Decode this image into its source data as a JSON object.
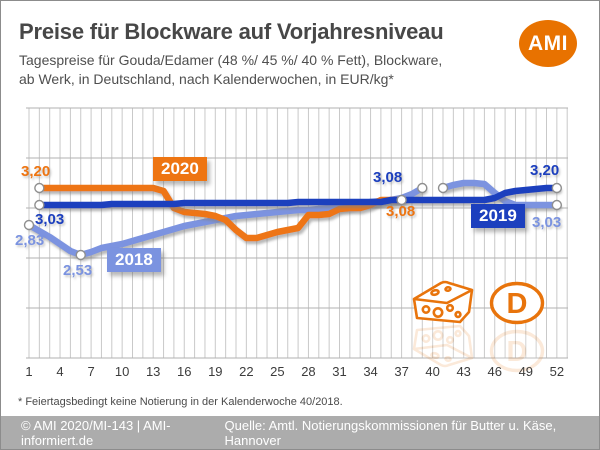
{
  "header": {
    "title": "Preise für Blockware auf Vorjahresniveau",
    "subtitle_line1": "Tagespreise für Gouda/Edamer (48 %/ 45 %/ 40 % Fett), Blockware,",
    "subtitle_line2": "ab Werk, in Deutschland, nach Kalenderwochen, in EUR/kg*",
    "logo_text": "AMI"
  },
  "colors": {
    "orange_2020": "#ee7512",
    "darkblue_2019": "#1c3fbe",
    "lightblue_2018": "#7b93e0",
    "logo_orange": "#e87200",
    "footer_bg": "#acacac"
  },
  "chart_data": {
    "type": "line",
    "title": "Preise für Blockware auf Vorjahresniveau",
    "xlabel": "Kalenderwochen",
    "ylabel": "EUR/kg",
    "x_ticks": [
      1,
      4,
      7,
      10,
      13,
      16,
      19,
      22,
      25,
      28,
      31,
      34,
      37,
      40,
      43,
      46,
      49,
      52
    ],
    "x_range": [
      1,
      52
    ],
    "y_range": [
      1.5,
      4.0
    ],
    "y_gridline_step": 0.5,
    "y_axis_labels_shown": false,
    "grid": {
      "vline_color": "#c9c9c9",
      "hline_color": "#b2b2b2"
    },
    "series": [
      {
        "name": "2018",
        "color": "#7b93e0",
        "values": [
          2.83,
          2.77,
          2.71,
          2.64,
          2.57,
          2.53,
          2.56,
          2.6,
          2.62,
          2.64,
          2.67,
          2.7,
          2.73,
          2.76,
          2.79,
          2.82,
          2.84,
          2.86,
          2.88,
          2.9,
          2.92,
          2.93,
          2.94,
          2.95,
          2.96,
          2.97,
          2.98,
          2.98,
          2.99,
          3.0,
          3.01,
          3.02,
          3.04,
          3.06,
          3.07,
          3.08,
          3.1,
          3.14,
          3.2,
          null,
          3.2,
          3.23,
          3.25,
          3.25,
          3.24,
          3.15,
          3.07,
          3.03,
          3.03,
          3.03,
          3.03,
          3.03
        ]
      },
      {
        "name": "2020",
        "color": "#ee7512",
        "values": [
          null,
          3.2,
          3.2,
          3.2,
          3.2,
          3.2,
          3.2,
          3.2,
          3.2,
          3.2,
          3.2,
          3.2,
          3.2,
          3.17,
          3.0,
          2.96,
          2.95,
          2.94,
          2.92,
          2.88,
          2.78,
          2.7,
          2.7,
          2.73,
          2.76,
          2.78,
          2.8,
          2.93,
          2.93,
          2.94,
          2.99,
          3.0,
          3.0,
          3.03,
          3.08,
          3.08,
          3.08,
          null,
          null,
          null,
          null,
          null,
          null,
          null,
          null,
          null,
          null,
          null,
          null,
          null,
          null,
          null
        ]
      },
      {
        "name": "2019",
        "color": "#1c3fbe",
        "values": [
          null,
          3.03,
          3.03,
          3.03,
          3.03,
          3.03,
          3.03,
          3.03,
          3.04,
          3.04,
          3.04,
          3.04,
          3.04,
          3.04,
          3.04,
          3.05,
          3.05,
          3.05,
          3.05,
          3.05,
          3.05,
          3.05,
          3.05,
          3.05,
          3.05,
          3.05,
          3.06,
          3.06,
          3.06,
          3.06,
          3.06,
          3.06,
          3.06,
          3.06,
          3.06,
          3.08,
          3.08,
          3.08,
          3.08,
          3.08,
          3.08,
          3.08,
          3.08,
          3.08,
          3.08,
          3.1,
          3.15,
          3.17,
          3.18,
          3.19,
          3.2,
          3.2
        ]
      }
    ],
    "markers": [
      {
        "series": "2020",
        "week": 2,
        "value": 3.2
      },
      {
        "series": "2019",
        "week": 2,
        "value": 3.03
      },
      {
        "series": "2018",
        "week": 1,
        "value": 2.83
      },
      {
        "series": "2018",
        "week": 6,
        "value": 2.53
      },
      {
        "series": "2020",
        "week": 37,
        "value": 3.08
      },
      {
        "series": "2018",
        "week": 39,
        "value": 3.2
      },
      {
        "series": "2018",
        "week": 41,
        "value": 3.2
      },
      {
        "series": "2019",
        "week": 52,
        "value": 3.2
      },
      {
        "series": "2018",
        "week": 52,
        "value": 3.03
      }
    ],
    "annotations": [
      {
        "text": "3,20",
        "series": "2020",
        "note": "start value week 2"
      },
      {
        "text": "3,03",
        "series": "2019",
        "note": "start value week 2"
      },
      {
        "text": "2,83",
        "series": "2018",
        "note": "start value week 1"
      },
      {
        "text": "2,53",
        "series": "2018",
        "note": "minimum week 6"
      },
      {
        "text": "3,08",
        "series": "2019",
        "note": "value week 37"
      },
      {
        "text": "3,08",
        "series": "2020",
        "note": "last value week 37"
      },
      {
        "text": "3,20",
        "series": "2019",
        "note": "end value week 52"
      },
      {
        "text": "3,03",
        "series": "2018",
        "note": "end value week 52"
      }
    ],
    "year_labels": [
      "2018",
      "2019",
      "2020"
    ],
    "legend_position": "inline-boxes-on-lines"
  },
  "icons": {
    "cheese": "cheese-wedge",
    "d_letter": "D"
  },
  "footnote": "* Feiertagsbedingt keine Notierung in der Kalenderwoche 40/2018.",
  "footer": {
    "left": "© AMI 2020/MI-143 | AMI-informiert.de",
    "right": "Quelle: Amtl. Notierungskommissionen für Butter u. Käse, Hannover"
  }
}
